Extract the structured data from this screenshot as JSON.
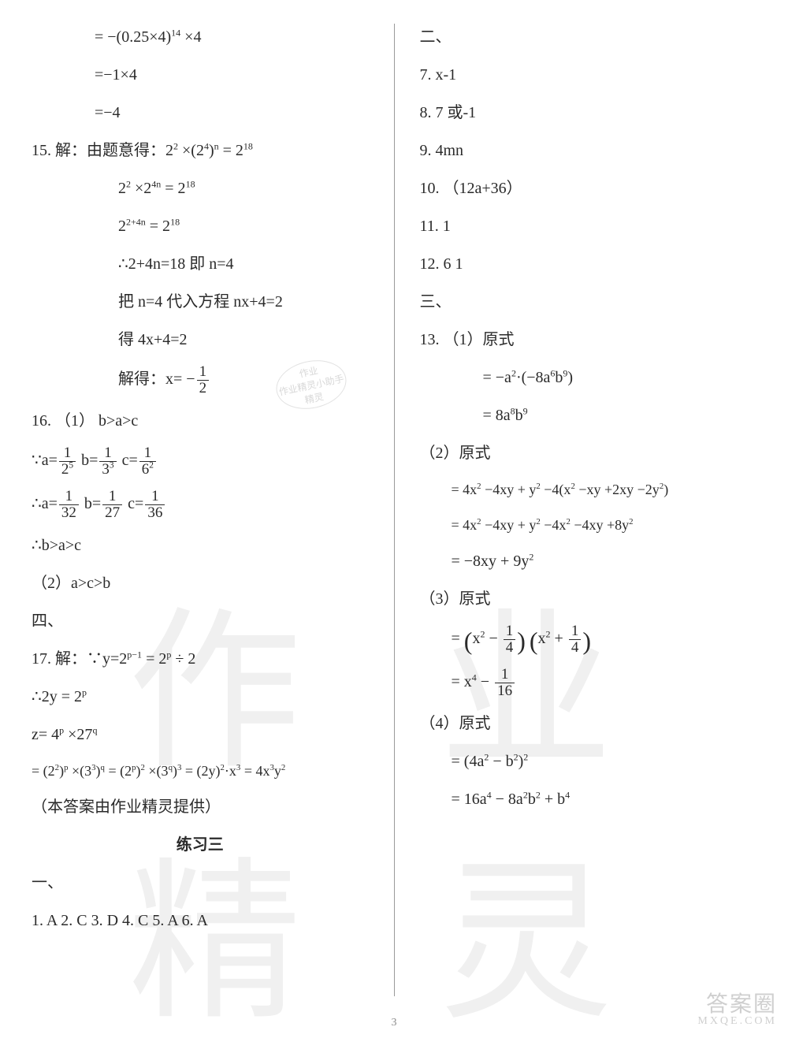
{
  "watermark_big": "作 业 精 灵",
  "stamp": {
    "l1": "作业",
    "l2": "作业精灵小助手",
    "l3": "精灵"
  },
  "corner": {
    "brand": "答案圈",
    "site": "MXQE.COM"
  },
  "page_number": "3",
  "left": {
    "l01a": "= −(0.25×4)",
    "l01b": "14",
    "l01c": " ×4",
    "l02": "=−1×4",
    "l03": "=−4",
    "l04a": "15.  解：由题意得：2",
    "l04b": "2",
    "l04c": " ×(2",
    "l04d": "4",
    "l04e": ")",
    "l04f": "n",
    "l04g": " = 2",
    "l04h": "18",
    "l05a": "2",
    "l05b": "2",
    "l05c": " ×2",
    "l05d": "4n",
    "l05e": " = 2",
    "l05f": "18",
    "l06a": "2",
    "l06b": "2+4n",
    "l06c": " = 2",
    "l06d": "18",
    "l07": "∴2+4n=18    即 n=4",
    "l08": "把 n=4 代入方程 nx+4=2",
    "l09": "得 4x+4=2",
    "l10a": "解得：x= −",
    "l10_num": "1",
    "l10_den": "2",
    "l11": "16. （1）  b>a>c",
    "l12_pre": "∵a=",
    "l12a_num": "1",
    "l12a_den": "2",
    "l12a_exp": "5",
    "l12_mid1": "     b=",
    "l12b_num": "1",
    "l12b_den": "3",
    "l12b_exp": "3",
    "l12_mid2": "    c=",
    "l12c_num": "1",
    "l12c_den": "6",
    "l12c_exp": "2",
    "l13_pre": "∴a=",
    "l13a_num": "1",
    "l13a_den": "32",
    "l13_mid1": "     b=",
    "l13b_num": "1",
    "l13b_den": "27",
    "l13_mid2": "    c=",
    "l13c_num": "1",
    "l13c_den": "36",
    "l14": "∴b>a>c",
    "l15": "（2）a>c>b",
    "l16": "四、",
    "l17a": "17.   解：∵y=2",
    "l17b": "p−1",
    "l17c": " = 2",
    "l17d": "p",
    "l17e": " ÷ 2",
    "l18a": "∴2y = 2",
    "l18b": "p",
    "l19a": "z= 4",
    "l19b": "p",
    "l19c": " ×27",
    "l19d": "q",
    "l20a": "= (2",
    "l20b": "2",
    "l20c": ")",
    "l20d": "p",
    "l20e": " ×(3",
    "l20f": "3",
    "l20g": ")",
    "l20h": "q",
    "l20i": " = (2",
    "l20j": "p",
    "l20k": ")",
    "l20l": "2",
    "l20m": " ×(3",
    "l20n": "q",
    "l20o": ")",
    "l20p": "3",
    "l20q": " = (2y)",
    "l20r": "2",
    "l20s": "·x",
    "l20t": "3",
    "l20u": " = 4x",
    "l20v": "3",
    "l20w": "y",
    "l20x": "2",
    "l21": "（本答案由作业精灵提供）",
    "l22": "练习三",
    "l23": "一、",
    "l24": "1. A   2. C   3. D   4. C   5. A   6. A"
  },
  "right": {
    "r01": "二、",
    "r02": "7.  x-1",
    "r03": "8.  7 或-1",
    "r04": "9.  4mn",
    "r05": "10. （12a+36）",
    "r06": "11.  1",
    "r07": "12.  6   1",
    "r08": "三、",
    "r09": "13. （1）原式",
    "r10a": "= −a",
    "r10b": "2",
    "r10c": "·(−8a",
    "r10d": "6",
    "r10e": "b",
    "r10f": "9",
    "r10g": ")",
    "r11a": "= 8a",
    "r11b": "8",
    "r11c": "b",
    "r11d": "9",
    "r12": "（2）原式",
    "r13a": "= 4x",
    "r13b": "2",
    "r13c": " −4xy + y",
    "r13d": "2",
    "r13e": " −4(x",
    "r13f": "2",
    "r13g": " −xy +2xy −2y",
    "r13h": "2",
    "r13i": ")",
    "r14a": "= 4x",
    "r14b": "2",
    "r14c": " −4xy + y",
    "r14d": "2",
    "r14e": " −4x",
    "r14f": "2",
    "r14g": " −4xy +8y",
    "r14h": "2",
    "r15a": "= −8xy + 9y",
    "r15b": "2",
    "r16": "（3）原式",
    "r17_pre": "= ",
    "r17a_lp": "(",
    "r17a_x": "x",
    "r17a_exp": "2",
    "r17a_minus": " − ",
    "r17a_num": "1",
    "r17a_den": "4",
    "r17a_rp": ")",
    "r17b_lp": "(",
    "r17b_x": "x",
    "r17b_exp": "2",
    "r17b_plus": " + ",
    "r17b_num": "1",
    "r17b_den": "4",
    "r17b_rp": ")",
    "r18_pre": "= x",
    "r18_exp": "4",
    "r18_minus": " − ",
    "r18_num": "1",
    "r18_den": "16",
    "r19": "（4）原式",
    "r20a": "= (4a",
    "r20b": "2",
    "r20c": " − b",
    "r20d": "2",
    "r20e": ")",
    "r20f": "2",
    "r21a": "= 16a",
    "r21b": "4",
    "r21c": " − 8a",
    "r21d": "2",
    "r21e": "b",
    "r21f": "2",
    "r21g": " + b",
    "r21h": "4"
  }
}
